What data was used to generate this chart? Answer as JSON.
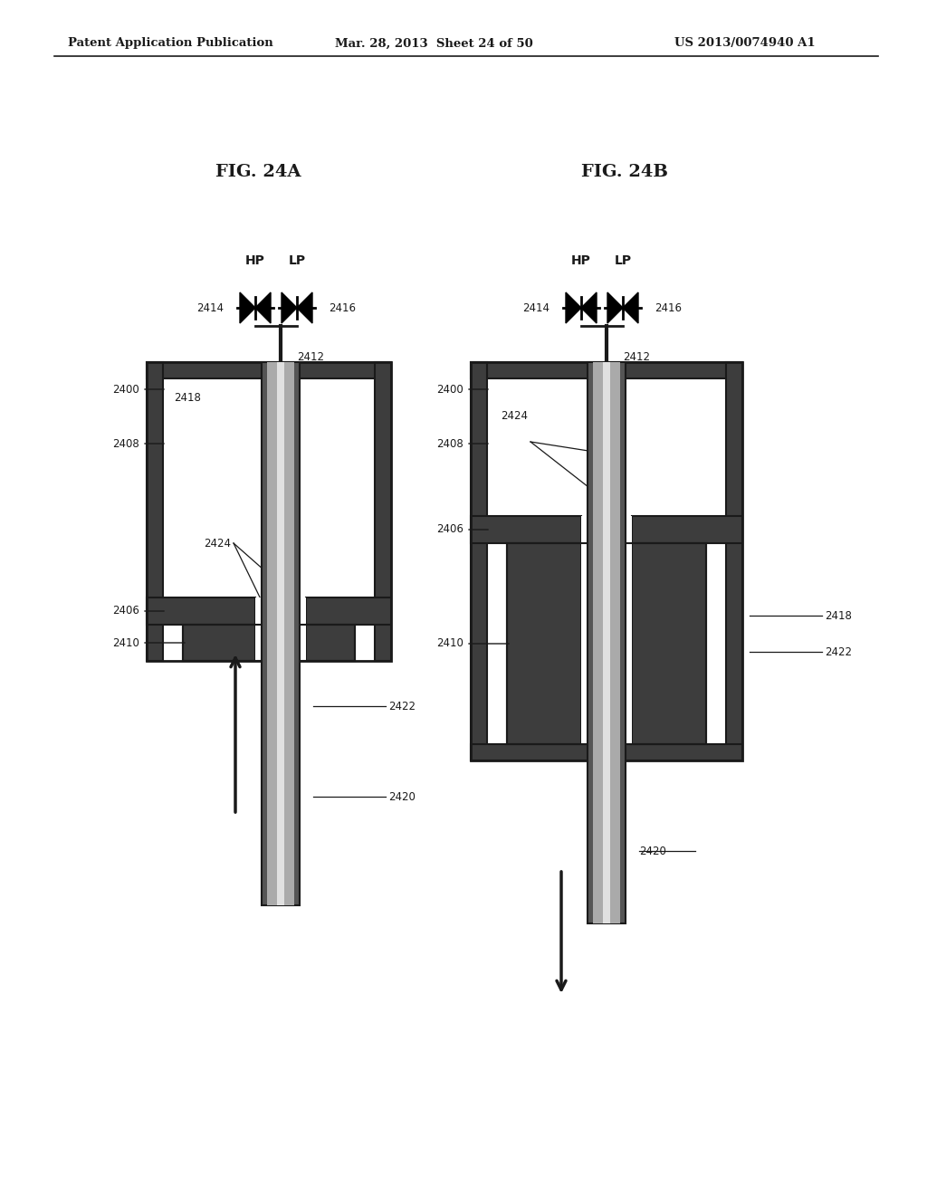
{
  "title_left": "FIG. 24A",
  "title_right": "FIG. 24B",
  "header_left": "Patent Application Publication",
  "header_mid": "Mar. 28, 2013  Sheet 24 of 50",
  "header_right": "US 2013/0074940 A1",
  "bg_color": "#ffffff",
  "dark_color": "#1a1a1a",
  "wall_color": "#3d3d3d",
  "rod_outer": "#555555",
  "rod_mid": "#aaaaaa",
  "rod_light": "#dddddd"
}
